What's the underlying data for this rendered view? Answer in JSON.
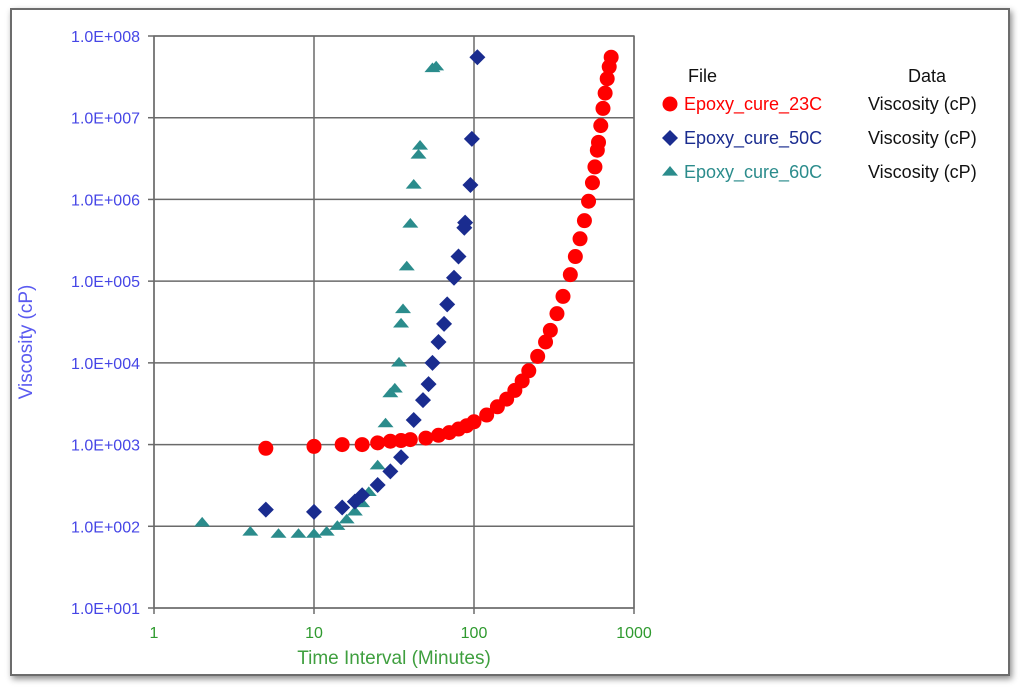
{
  "chart_data": {
    "type": "scatter",
    "title": "",
    "xlabel": "Time Interval (Minutes)",
    "ylabel": "Viscosity (cP)",
    "x_scale": "log",
    "y_scale": "log",
    "xlim": [
      1,
      1000
    ],
    "ylim": [
      10,
      100000000
    ],
    "x_ticks": [
      "1",
      "10",
      "100",
      "1000"
    ],
    "y_ticks": [
      "1.0E+001",
      "1.0E+002",
      "1.0E+003",
      "1.0E+004",
      "1.0E+005",
      "1.0E+006",
      "1.0E+007",
      "1.0E+008"
    ],
    "grid": true,
    "legend": {
      "placement": "right",
      "header_file": "File",
      "header_data": "Data"
    },
    "series": [
      {
        "name": "Epoxy_cure_23C",
        "data_label": "Viscosity (cP)",
        "marker": "circle",
        "color": "#ff0000",
        "points": [
          [
            5,
            900
          ],
          [
            10,
            950
          ],
          [
            15,
            1000
          ],
          [
            20,
            1000
          ],
          [
            25,
            1050
          ],
          [
            30,
            1100
          ],
          [
            35,
            1120
          ],
          [
            40,
            1150
          ],
          [
            50,
            1200
          ],
          [
            60,
            1300
          ],
          [
            70,
            1400
          ],
          [
            80,
            1550
          ],
          [
            90,
            1700
          ],
          [
            100,
            1900
          ],
          [
            120,
            2300
          ],
          [
            140,
            2900
          ],
          [
            160,
            3600
          ],
          [
            180,
            4600
          ],
          [
            200,
            6000
          ],
          [
            220,
            8000
          ],
          [
            250,
            12000
          ],
          [
            280,
            18000
          ],
          [
            300,
            25000
          ],
          [
            330,
            40000
          ],
          [
            360,
            65000
          ],
          [
            400,
            120000
          ],
          [
            430,
            200000
          ],
          [
            460,
            330000
          ],
          [
            490,
            550000
          ],
          [
            520,
            950000
          ],
          [
            550,
            1600000
          ],
          [
            570,
            2500000
          ],
          [
            590,
            4000000
          ],
          [
            600,
            5000000
          ],
          [
            620,
            8000000
          ],
          [
            640,
            13000000
          ],
          [
            660,
            20000000
          ],
          [
            680,
            30000000
          ],
          [
            700,
            42000000
          ],
          [
            720,
            55000000
          ]
        ]
      },
      {
        "name": "Epoxy_cure_50C",
        "data_label": "Viscosity (cP)",
        "marker": "diamond",
        "color": "#1a2c8f",
        "points": [
          [
            5,
            160
          ],
          [
            10,
            150
          ],
          [
            15,
            170
          ],
          [
            18,
            200
          ],
          [
            20,
            240
          ],
          [
            25,
            320
          ],
          [
            30,
            470
          ],
          [
            35,
            700
          ],
          [
            42,
            2000
          ],
          [
            48,
            3500
          ],
          [
            52,
            5500
          ],
          [
            55,
            10000
          ],
          [
            60,
            18000
          ],
          [
            65,
            30000
          ],
          [
            68,
            52000
          ],
          [
            75,
            110000
          ],
          [
            80,
            200000
          ],
          [
            87,
            450000
          ],
          [
            88,
            520000
          ],
          [
            95,
            1500000
          ],
          [
            97,
            5500000
          ],
          [
            105,
            55000000
          ]
        ]
      },
      {
        "name": "Epoxy_cure_60C",
        "data_label": "Viscosity (cP)",
        "marker": "triangle",
        "color": "#2b8c8c",
        "points": [
          [
            2,
            110
          ],
          [
            4,
            85
          ],
          [
            6,
            80
          ],
          [
            8,
            80
          ],
          [
            10,
            80
          ],
          [
            12,
            85
          ],
          [
            14,
            100
          ],
          [
            16,
            120
          ],
          [
            18,
            150
          ],
          [
            20,
            190
          ],
          [
            22,
            260
          ],
          [
            25,
            550
          ],
          [
            28,
            1800
          ],
          [
            30,
            4200
          ],
          [
            32,
            4800
          ],
          [
            34,
            10000
          ],
          [
            35,
            30000
          ],
          [
            36,
            45000
          ],
          [
            38,
            150000
          ],
          [
            40,
            500000
          ],
          [
            42,
            1500000
          ],
          [
            45,
            3500000
          ],
          [
            46,
            4500000
          ],
          [
            55,
            40000000
          ],
          [
            58,
            42000000
          ]
        ]
      }
    ]
  }
}
